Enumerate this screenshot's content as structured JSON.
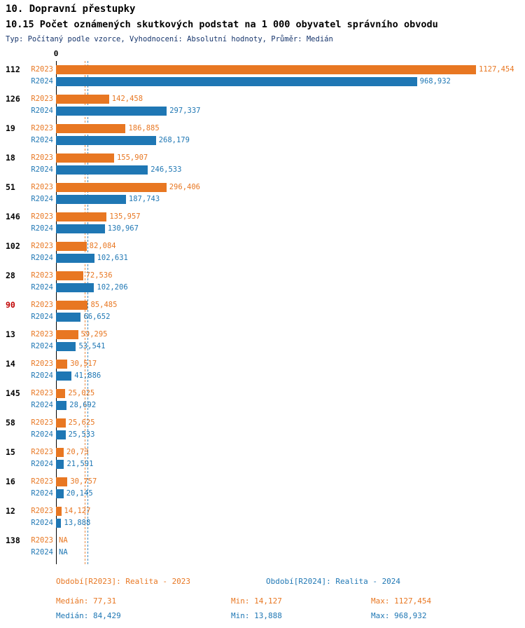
{
  "header": {
    "title": "10. Dopravní přestupky",
    "subtitle": "10.15 Počet oznámených skutkových podstat na 1 000 obyvatel správního obvodu",
    "meta": "Typ: Počítaný podle vzorce, Vyhodnocení: Absolutní hodnoty, Průměr: Medián"
  },
  "chart_data": {
    "type": "bar",
    "orientation": "horizontal",
    "title": "10.15 Počet oznámených skutkových podstat na 1 000 obyvatel správního obvodu",
    "axis": {
      "zero_label": "0",
      "xmin": 0,
      "grid": false
    },
    "legend_position": "bottom",
    "series": [
      {
        "key": "r2023",
        "name": "R2023",
        "color": "#E87722",
        "median": 77.31
      },
      {
        "key": "r2024",
        "name": "R2024",
        "color": "#1F77B4",
        "median": 84.429
      }
    ],
    "highlight_category": "90",
    "highlight_color": "#C00000",
    "groups": [
      {
        "category": "112",
        "r2023": {
          "value": 1127.454,
          "label": "1127,454"
        },
        "r2024": {
          "value": 968.932,
          "label": "968,932"
        }
      },
      {
        "category": "126",
        "r2023": {
          "value": 142.458,
          "label": "142,458"
        },
        "r2024": {
          "value": 297.337,
          "label": "297,337"
        }
      },
      {
        "category": "19",
        "r2023": {
          "value": 186.885,
          "label": "186,885"
        },
        "r2024": {
          "value": 268.179,
          "label": "268,179"
        }
      },
      {
        "category": "18",
        "r2023": {
          "value": 155.907,
          "label": "155,907"
        },
        "r2024": {
          "value": 246.533,
          "label": "246,533"
        }
      },
      {
        "category": "51",
        "r2023": {
          "value": 296.406,
          "label": "296,406"
        },
        "r2024": {
          "value": 187.743,
          "label": "187,743"
        }
      },
      {
        "category": "146",
        "r2023": {
          "value": 135.957,
          "label": "135,957"
        },
        "r2024": {
          "value": 130.967,
          "label": "130,967"
        }
      },
      {
        "category": "102",
        "r2023": {
          "value": 82.084,
          "label": "82,084"
        },
        "r2024": {
          "value": 102.631,
          "label": "102,631"
        }
      },
      {
        "category": "28",
        "r2023": {
          "value": 72.536,
          "label": "72,536"
        },
        "r2024": {
          "value": 102.206,
          "label": "102,206"
        }
      },
      {
        "category": "90",
        "r2023": {
          "value": 85.485,
          "label": "85,485"
        },
        "r2024": {
          "value": 66.652,
          "label": "66,652"
        }
      },
      {
        "category": "13",
        "r2023": {
          "value": 59.295,
          "label": "59,295"
        },
        "r2024": {
          "value": 53.541,
          "label": "53,541"
        }
      },
      {
        "category": "14",
        "r2023": {
          "value": 30.517,
          "label": "30,517"
        },
        "r2024": {
          "value": 41.886,
          "label": "41,886"
        }
      },
      {
        "category": "145",
        "r2023": {
          "value": 25.025,
          "label": "25,025"
        },
        "r2024": {
          "value": 28.692,
          "label": "28,692"
        }
      },
      {
        "category": "58",
        "r2023": {
          "value": 25.625,
          "label": "25,625"
        },
        "r2024": {
          "value": 25.533,
          "label": "25,533"
        }
      },
      {
        "category": "15",
        "r2023": {
          "value": 20.73,
          "label": "20,73"
        },
        "r2024": {
          "value": 21.591,
          "label": "21,591"
        }
      },
      {
        "category": "16",
        "r2023": {
          "value": 30.757,
          "label": "30,757"
        },
        "r2024": {
          "value": 20.145,
          "label": "20,145"
        }
      },
      {
        "category": "12",
        "r2023": {
          "value": 14.127,
          "label": "14,127"
        },
        "r2024": {
          "value": 13.888,
          "label": "13,888"
        }
      },
      {
        "category": "138",
        "r2023": {
          "value": null,
          "label": "NA"
        },
        "r2024": {
          "value": null,
          "label": "NA"
        }
      }
    ]
  },
  "footer": {
    "legend": [
      {
        "text": "Období[R2023]: Realita - 2023",
        "color": "#E87722"
      },
      {
        "text": "Období[R2024]: Realita - 2024",
        "color": "#1F77B4"
      }
    ],
    "stats": [
      {
        "median": "Medián: 77,31",
        "min": "Min: 14,127",
        "max": "Max: 1127,454",
        "color": "#E87722"
      },
      {
        "median": "Medián: 84,429",
        "min": "Min: 13,888",
        "max": "Max: 968,932",
        "color": "#1F77B4"
      }
    ]
  }
}
